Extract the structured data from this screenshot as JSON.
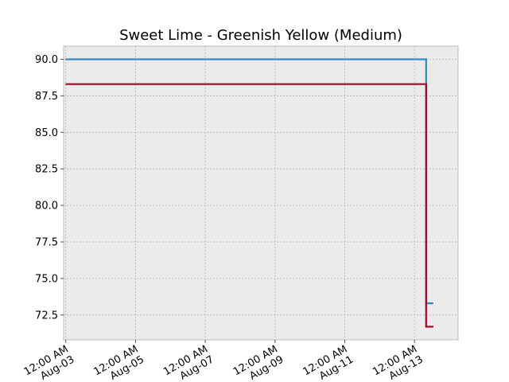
{
  "chart_data": {
    "type": "line",
    "title": "Sweet Lime - Greenish Yellow (Medium)",
    "xlabel": "",
    "ylabel": "",
    "x_axis": {
      "type": "date",
      "range": [
        "2023-08-02T22:30",
        "2023-08-14T06:00"
      ],
      "tick_dates": [
        "2023-08-03",
        "2023-08-05",
        "2023-08-07",
        "2023-08-09",
        "2023-08-11",
        "2023-08-13"
      ],
      "tick_labels": [
        "12:00 AM\nAug-03",
        "12:00 AM\nAug-05",
        "12:00 AM\nAug-07",
        "12:00 AM\nAug-09",
        "12:00 AM\nAug-11",
        "12:00 AM\nAug-13"
      ]
    },
    "y_axis": {
      "range": [
        70.8,
        90.9
      ],
      "ticks": [
        72.5,
        75.0,
        77.5,
        80.0,
        82.5,
        85.0,
        87.5,
        90.0
      ],
      "tick_labels": [
        "72.5",
        "75.0",
        "77.5",
        "80.0",
        "82.5",
        "85.0",
        "87.5",
        "90.0"
      ]
    },
    "grid": true,
    "legend": "none",
    "background_color": "#ebebeb",
    "series": [
      {
        "color": "#348abd",
        "step": "post",
        "points": [
          {
            "x": "2023-08-02T23:48",
            "y": 90.0
          },
          {
            "x": "2023-08-13T08:00",
            "y": 90.0
          },
          {
            "x": "2023-08-13T08:00",
            "y": 73.3
          },
          {
            "x": "2023-08-13T13:00",
            "y": 73.3
          }
        ]
      },
      {
        "color": "#a60628",
        "step": "post",
        "points": [
          {
            "x": "2023-08-02T23:48",
            "y": 88.3
          },
          {
            "x": "2023-08-13T08:00",
            "y": 88.3
          },
          {
            "x": "2023-08-13T08:00",
            "y": 71.7
          },
          {
            "x": "2023-08-13T13:00",
            "y": 71.7
          }
        ]
      }
    ]
  }
}
